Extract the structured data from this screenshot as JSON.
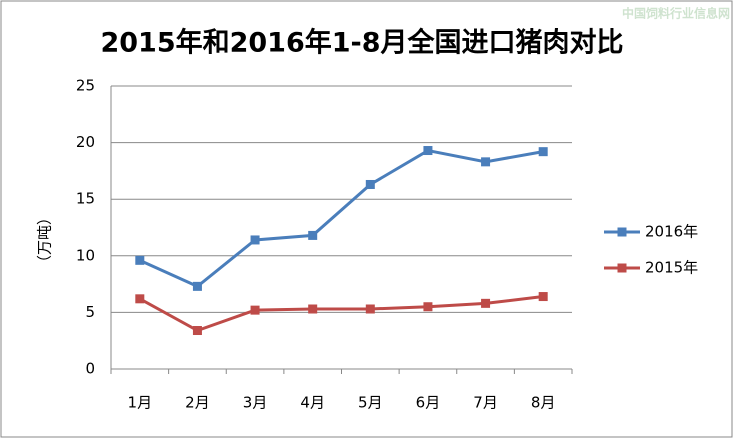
{
  "chart_data": {
    "type": "line",
    "title": "2015年和2016年1-8月全国进口猪肉对比",
    "watermark": "中国饲料行业信息网",
    "y_label": "（万吨）",
    "categories": [
      "1月",
      "2月",
      "3月",
      "4月",
      "5月",
      "6月",
      "7月",
      "8月"
    ],
    "series": [
      {
        "name": "2016年",
        "color": "#4a7ebb",
        "values": [
          9.6,
          7.3,
          11.4,
          11.8,
          16.3,
          19.3,
          18.3,
          19.2
        ]
      },
      {
        "name": "2015年",
        "color": "#be4b48",
        "values": [
          6.2,
          3.4,
          5.2,
          5.3,
          5.3,
          5.5,
          5.8,
          6.4
        ]
      }
    ],
    "ylim": [
      0,
      25
    ],
    "yticks": [
      0,
      5,
      10,
      15,
      20,
      25
    ],
    "grid": true,
    "legend": "right"
  }
}
